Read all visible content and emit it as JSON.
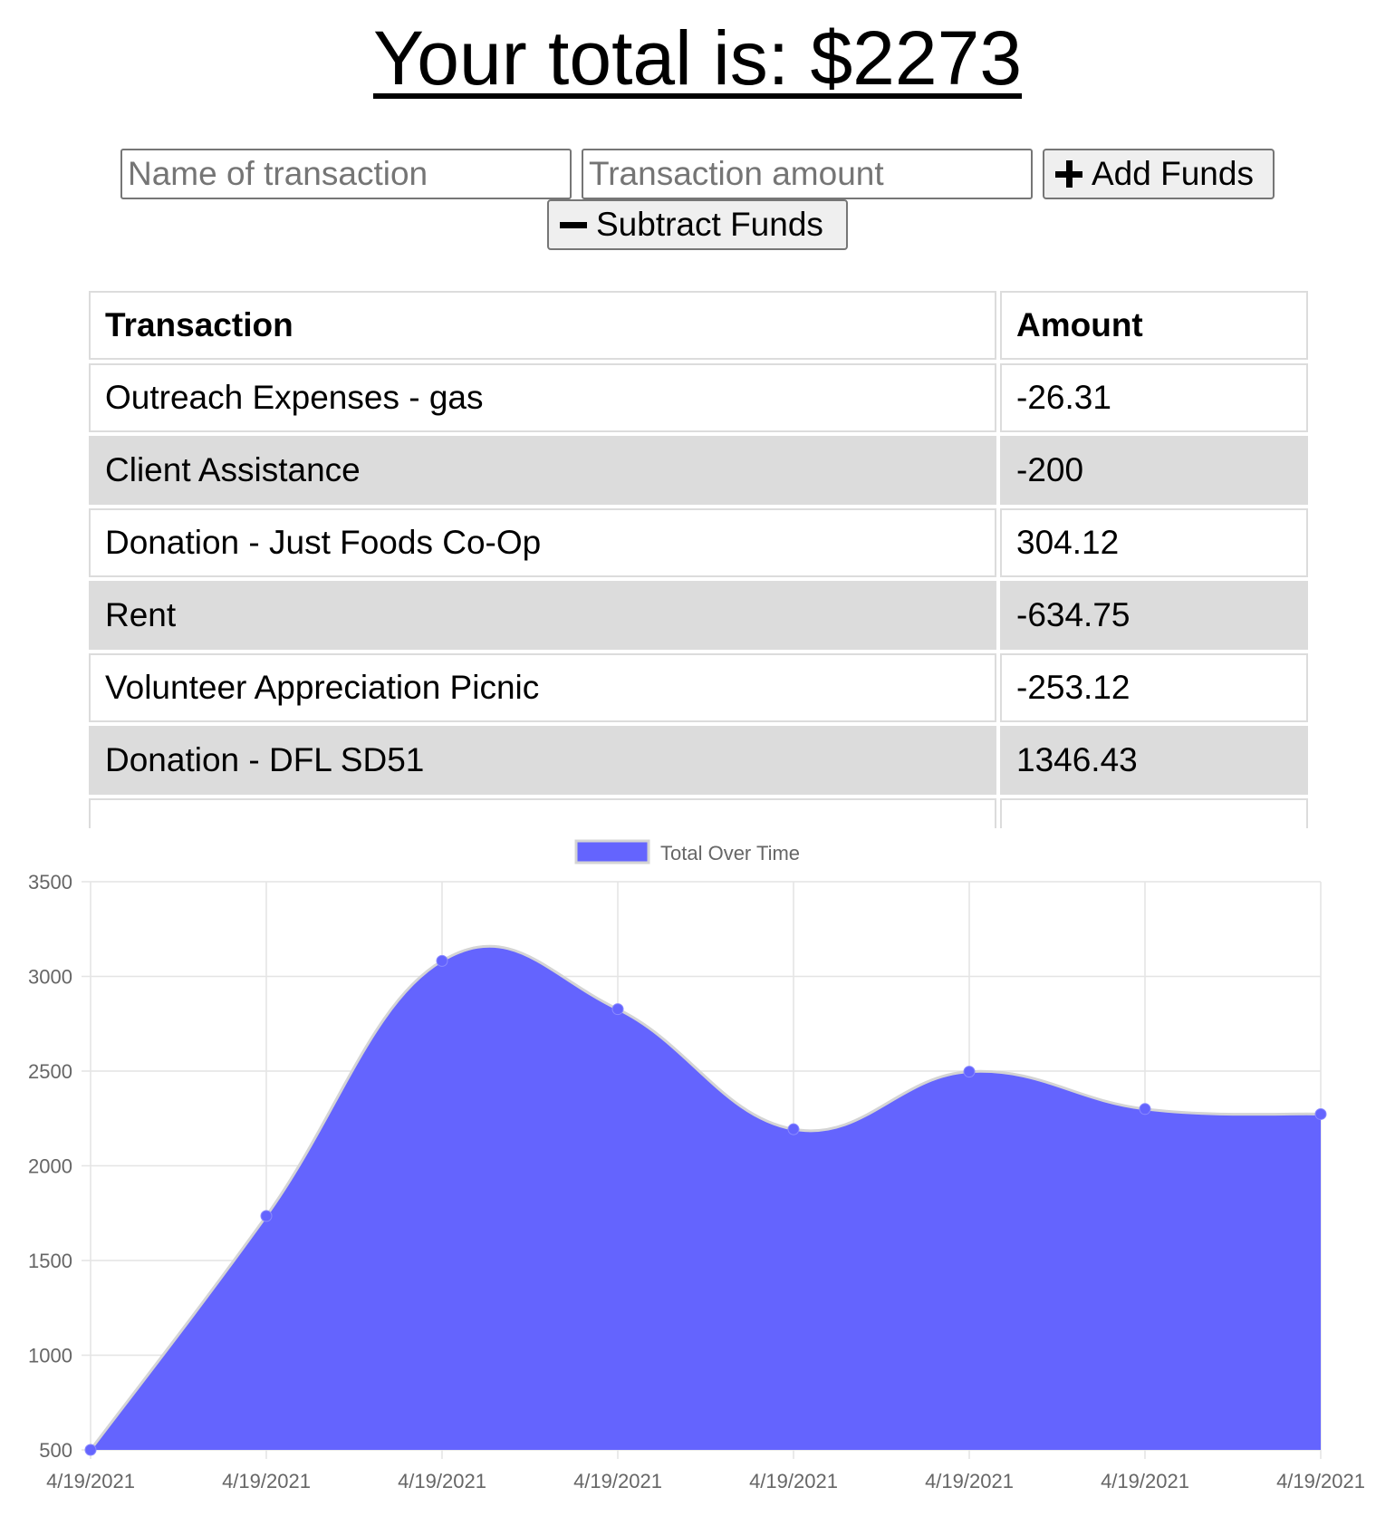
{
  "header": {
    "title": "Your total is: $2273"
  },
  "form": {
    "name_placeholder": "Name of transaction",
    "amount_placeholder": "Transaction amount",
    "add_label": "Add Funds",
    "add_icon": "plus-icon",
    "subtract_label": "Subtract Funds",
    "subtract_icon": "minus-icon"
  },
  "table": {
    "headers": [
      "Transaction",
      "Amount"
    ],
    "rows": [
      {
        "name": "Outreach Expenses - gas",
        "amount": "-26.31"
      },
      {
        "name": "Client Assistance",
        "amount": "-200"
      },
      {
        "name": "Donation - Just Foods Co-Op",
        "amount": "304.12"
      },
      {
        "name": "Rent",
        "amount": "-634.75"
      },
      {
        "name": "Volunteer Appreciation Picnic",
        "amount": "-253.12"
      },
      {
        "name": "Donation - DFL SD51",
        "amount": "1346.43"
      }
    ]
  },
  "chart_data": {
    "type": "area",
    "title": "",
    "xlabel": "",
    "ylabel": "",
    "categories": [
      "4/19/2021",
      "4/19/2021",
      "4/19/2021",
      "4/19/2021",
      "4/19/2021",
      "4/19/2021",
      "4/19/2021",
      "4/19/2021"
    ],
    "series": [
      {
        "name": "Total Over Time",
        "values": [
          500,
          1735,
          3082,
          2827,
          2193,
          2497,
          2300,
          2273
        ]
      }
    ],
    "ylim": [
      500,
      3500
    ],
    "yticks": [
      500,
      1000,
      1500,
      2000,
      2500,
      3000,
      3500
    ],
    "grid": true,
    "legend": "top-center",
    "fill_color": "#6464fe",
    "line_color": "#d4d4d4"
  }
}
